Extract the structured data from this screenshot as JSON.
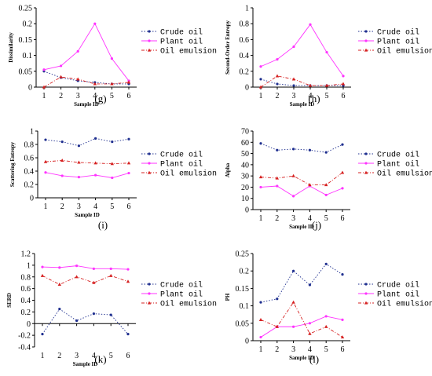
{
  "legend_names": [
    "Crude oil",
    "Plant oil",
    "Oil emulsion"
  ],
  "colors": {
    "crude": "#1f2f8f",
    "plant": "#ff33ff",
    "emulsion": "#d62020",
    "axis": "#000000"
  },
  "chart_data": [
    {
      "panel": "(g)",
      "type": "line",
      "xlabel": "Sample ID",
      "ylabel": "Dissimilarity",
      "x": [
        1,
        2,
        3,
        4,
        5,
        6
      ],
      "xlim": [
        1,
        6
      ],
      "ylim": [
        0,
        0.25
      ],
      "yticks": [
        0,
        0.05,
        0.1,
        0.15,
        0.2,
        0.25
      ],
      "ytick_labels": [
        "0",
        "0.05",
        "0.1",
        "0.15",
        "0.2",
        "0.25"
      ],
      "series": [
        {
          "name": "Crude oil",
          "values": [
            0.05,
            0.03,
            0.02,
            0.015,
            0.01,
            0.01
          ]
        },
        {
          "name": "Plant oil",
          "values": [
            0.055,
            0.067,
            0.113,
            0.2,
            0.09,
            0.02
          ]
        },
        {
          "name": "Oil emulsion",
          "values": [
            0.0,
            0.032,
            0.025,
            0.01,
            0.01,
            0.015
          ]
        }
      ]
    },
    {
      "panel": "(h)",
      "type": "line",
      "xlabel": "Sample ID",
      "ylabel": "Second-Order Entropy",
      "x": [
        1,
        2,
        3,
        4,
        5,
        6
      ],
      "xlim": [
        1,
        6
      ],
      "ylim": [
        0,
        1
      ],
      "yticks": [
        0,
        0.2,
        0.4,
        0.6,
        0.8,
        1
      ],
      "ytick_labels": [
        "0",
        "0.2",
        "0.4",
        "0.6",
        "0.8",
        "1"
      ],
      "series": [
        {
          "name": "Crude oil",
          "values": [
            0.1,
            0.04,
            0.02,
            0.02,
            0.02,
            0.02
          ]
        },
        {
          "name": "Plant oil",
          "values": [
            0.26,
            0.35,
            0.51,
            0.79,
            0.44,
            0.14
          ]
        },
        {
          "name": "Oil emulsion",
          "values": [
            0.0,
            0.14,
            0.1,
            0.02,
            0.02,
            0.04
          ]
        }
      ]
    },
    {
      "panel": "(i)",
      "type": "line",
      "xlabel": "Sample ID",
      "ylabel": "Scattering Entropy",
      "x": [
        1,
        2,
        3,
        4,
        5,
        6
      ],
      "xlim": [
        1,
        6
      ],
      "ylim": [
        0,
        1
      ],
      "yticks": [
        0,
        0.2,
        0.4,
        0.6,
        0.8,
        1
      ],
      "ytick_labels": [
        "0",
        "0.2",
        "0.4",
        "0.6",
        "0.8",
        "1"
      ],
      "series": [
        {
          "name": "Crude oil",
          "values": [
            0.87,
            0.84,
            0.78,
            0.89,
            0.84,
            0.88
          ]
        },
        {
          "name": "Plant oil",
          "values": [
            0.38,
            0.33,
            0.31,
            0.34,
            0.3,
            0.37
          ]
        },
        {
          "name": "Oil emulsion",
          "values": [
            0.54,
            0.56,
            0.53,
            0.52,
            0.51,
            0.52
          ]
        }
      ]
    },
    {
      "panel": "(j)",
      "type": "line",
      "xlabel": "Sample ID",
      "ylabel": "Alpha",
      "x": [
        1,
        2,
        3,
        4,
        5,
        6
      ],
      "xlim": [
        1,
        6
      ],
      "ylim": [
        0,
        70
      ],
      "yticks": [
        0,
        10,
        20,
        30,
        40,
        50,
        60,
        70
      ],
      "ytick_labels": [
        "0",
        "10",
        "20",
        "30",
        "40",
        "50",
        "60",
        "70"
      ],
      "series": [
        {
          "name": "Crude oil",
          "values": [
            59,
            53,
            54,
            53,
            51,
            58
          ]
        },
        {
          "name": "Plant oil",
          "values": [
            20,
            21,
            12,
            21,
            13,
            19
          ]
        },
        {
          "name": "Oil emulsion",
          "values": [
            29,
            28,
            30,
            22,
            22,
            33
          ]
        }
      ]
    },
    {
      "panel": "(k)",
      "type": "line",
      "xlabel": "Sample ID",
      "ylabel": "SERD",
      "x": [
        1,
        2,
        3,
        4,
        5,
        6
      ],
      "xlim": [
        1,
        6
      ],
      "ylim": [
        -0.4,
        1.2
      ],
      "yticks": [
        -0.4,
        -0.2,
        0,
        0.2,
        0.4,
        0.6,
        0.8,
        1,
        1.2
      ],
      "ytick_labels": [
        "-0.4",
        "-0.2",
        "0",
        "0.2",
        "0.4",
        "0.6",
        "0.8",
        "1",
        "1.2"
      ],
      "series": [
        {
          "name": "Crude oil",
          "values": [
            -0.18,
            0.25,
            0.05,
            0.17,
            0.15,
            -0.18
          ]
        },
        {
          "name": "Plant oil",
          "values": [
            0.97,
            0.96,
            0.99,
            0.94,
            0.94,
            0.93
          ]
        },
        {
          "name": "Oil emulsion",
          "values": [
            0.82,
            0.67,
            0.8,
            0.7,
            0.82,
            0.72
          ]
        }
      ]
    },
    {
      "panel": "(l)",
      "type": "line",
      "xlabel": "Sample ID",
      "ylabel": "PH",
      "x": [
        1,
        2,
        3,
        4,
        5,
        6
      ],
      "xlim": [
        1,
        6
      ],
      "ylim": [
        0,
        0.25
      ],
      "yticks": [
        0,
        0.05,
        0.1,
        0.15,
        0.2,
        0.25
      ],
      "ytick_labels": [
        "0",
        "0.05",
        "0.1",
        "0.15",
        "0.2",
        "0.25"
      ],
      "series": [
        {
          "name": "Crude oil",
          "values": [
            0.11,
            0.12,
            0.2,
            0.16,
            0.22,
            0.19
          ]
        },
        {
          "name": "Plant oil",
          "values": [
            0.01,
            0.04,
            0.04,
            0.05,
            0.07,
            0.06
          ]
        },
        {
          "name": "Oil emulsion",
          "values": [
            0.06,
            0.04,
            0.11,
            0.02,
            0.04,
            0.01
          ]
        }
      ]
    }
  ]
}
